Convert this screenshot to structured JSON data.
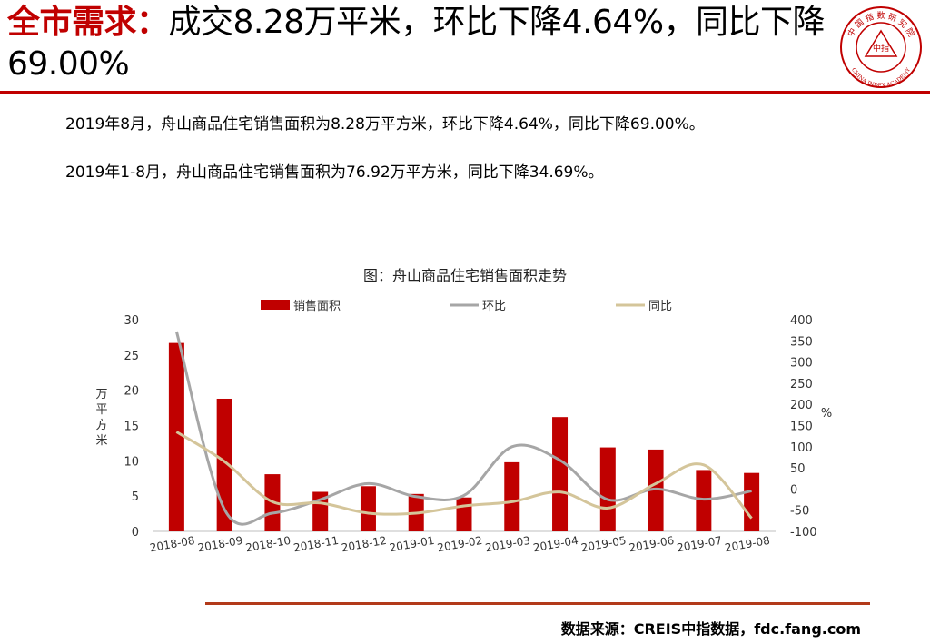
{
  "header": {
    "label": "全市需求：",
    "headline": "成交8.28万平米，环比下降4.64%，同比下降69.00%"
  },
  "logo": {
    "outer_text": "中 国 指 数 研 究 院",
    "inner_text": "中指",
    "english_text": "CHINA INDEX ACADEMY",
    "color": "#c00000"
  },
  "body": {
    "para1": "2019年8月，舟山商品住宅销售面积为8.28万平方米，环比下降4.64%，同比下降69.00%。",
    "para2": "2019年1-8月，舟山商品住宅销售面积为76.92万平方米，同比下降34.69%。"
  },
  "chart_title": "图：舟山商品住宅销售面积走势",
  "chart_data": {
    "type": "bar",
    "title": "图：舟山商品住宅销售面积走势",
    "categories": [
      "2018-08",
      "2018-09",
      "2018-10",
      "2018-11",
      "2018-12",
      "2019-01",
      "2019-02",
      "2019-03",
      "2019-04",
      "2019-05",
      "2019-06",
      "2019-07",
      "2019-08"
    ],
    "ylabel": "万平方米",
    "ylim": [
      0,
      30
    ],
    "yticks": [
      0,
      5,
      10,
      15,
      20,
      25,
      30
    ],
    "y2label": "%",
    "y2lim": [
      -100,
      400
    ],
    "y2ticks": [
      -100,
      -50,
      0,
      50,
      100,
      150,
      200,
      250,
      300,
      350,
      400
    ],
    "legend_position": "top",
    "series": [
      {
        "name": "销售面积",
        "kind": "bar",
        "axis": "left",
        "color": "#c00000",
        "values": [
          26.7,
          18.8,
          8.1,
          5.6,
          6.4,
          5.3,
          4.8,
          9.8,
          16.2,
          11.9,
          11.6,
          8.7,
          8.28
        ]
      },
      {
        "name": "环比",
        "kind": "line",
        "axis": "right",
        "color": "#a6a6a6",
        "values": [
          372,
          -48,
          -57,
          -25,
          13,
          -18,
          -15,
          100,
          68,
          -25,
          0,
          -24,
          -4.64
        ]
      },
      {
        "name": "同比",
        "kind": "line",
        "axis": "right",
        "color": "#d4c59a",
        "values": [
          135,
          65,
          -30,
          -33,
          -57,
          -57,
          -40,
          -30,
          -7,
          -45,
          13,
          57,
          -69
        ]
      }
    ]
  },
  "footer": {
    "source": "数据来源：CREIS中指数据，fdc.fang.com"
  }
}
